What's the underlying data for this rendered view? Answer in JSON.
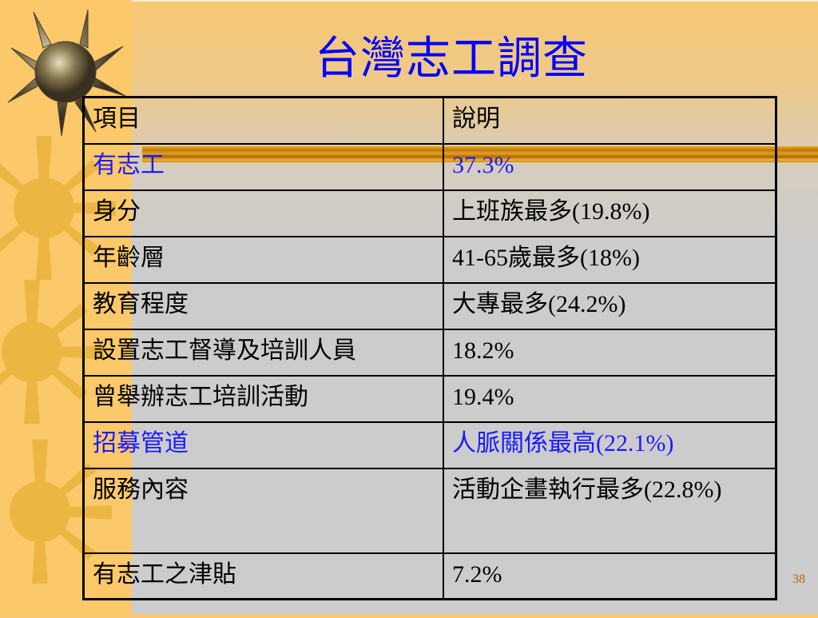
{
  "slide": {
    "title": "台灣志工調查",
    "page_number": "38",
    "accent_color": "#0000ff",
    "table": {
      "headers": [
        "項目",
        "說明"
      ],
      "rows": [
        {
          "item": "有志工",
          "desc": "37.3%",
          "highlight": true
        },
        {
          "item": "身分",
          "desc": "上班族最多(19.8%)",
          "highlight": false
        },
        {
          "item": "年齡層",
          "desc": "41-65歲最多(18%)",
          "highlight": false
        },
        {
          "item": "教育程度",
          "desc": "大專最多(24.2%)",
          "highlight": false
        },
        {
          "item": "設置志工督導及培訓人員",
          "desc": "18.2%",
          "highlight": false
        },
        {
          "item": "曾舉辦志工培訓活動",
          "desc": "19.4%",
          "highlight": false
        },
        {
          "item": "招募管道",
          "desc": "人脈關係最高(22.1%)",
          "highlight": true
        },
        {
          "item": "服務內容",
          "desc": "活動企畫執行最多(22.8%)",
          "highlight": false
        },
        {
          "item": "有志工之津貼",
          "desc": "7.2%",
          "highlight": false
        }
      ]
    }
  }
}
